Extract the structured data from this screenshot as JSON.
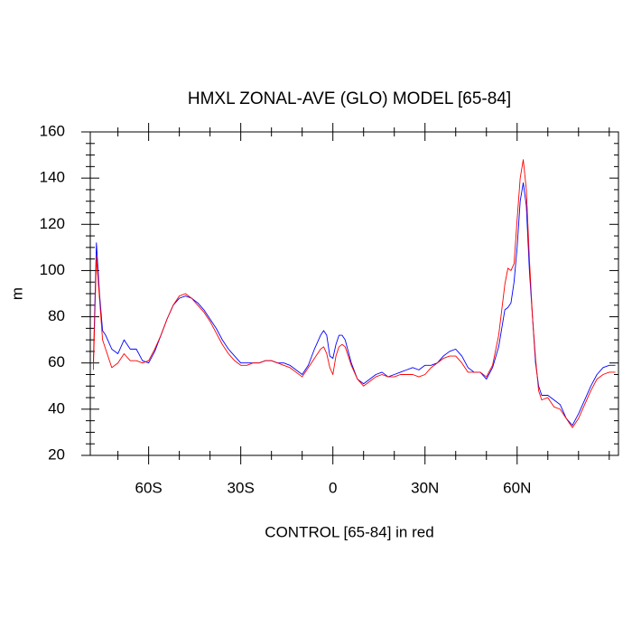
{
  "chart_data": {
    "type": "line",
    "title": "HMXL ZONAL-AVE (GLO) MODEL [65-84]",
    "xlabel": "CONTROL [65-84] in red",
    "ylabel": "m",
    "x": [
      -78,
      -77,
      -76,
      -75,
      -74,
      -72,
      -70,
      -68,
      -66,
      -64,
      -62,
      -60,
      -58,
      -56,
      -54,
      -52,
      -50,
      -48,
      -46,
      -44,
      -42,
      -40,
      -38,
      -36,
      -34,
      -32,
      -30,
      -28,
      -26,
      -24,
      -22,
      -20,
      -18,
      -16,
      -14,
      -12,
      -10,
      -8,
      -6,
      -4,
      -3,
      -2,
      -1,
      0,
      1,
      2,
      3,
      4,
      6,
      8,
      10,
      12,
      14,
      16,
      18,
      20,
      22,
      24,
      26,
      28,
      30,
      32,
      34,
      36,
      38,
      40,
      42,
      44,
      46,
      48,
      50,
      52,
      54,
      56,
      57,
      58,
      59,
      60,
      61,
      62,
      63,
      64,
      65,
      66,
      67,
      68,
      70,
      72,
      74,
      76,
      78,
      80,
      82,
      84,
      86,
      88,
      90,
      92
    ],
    "series": [
      {
        "color": "#0000ff",
        "values": [
          60,
          112,
          90,
          74,
          72,
          66,
          64,
          70,
          66,
          66,
          61,
          60,
          65,
          72,
          79,
          85,
          88,
          89,
          88,
          86,
          83,
          79,
          75,
          70,
          66,
          63,
          60,
          60,
          60,
          60,
          61,
          61,
          60,
          60,
          59,
          57,
          55,
          59,
          66,
          72,
          74,
          72,
          63,
          62,
          68,
          72,
          72,
          70,
          60,
          53,
          51,
          53,
          55,
          56,
          54,
          55,
          56,
          57,
          58,
          57,
          59,
          59,
          60,
          63,
          65,
          66,
          63,
          58,
          56,
          56,
          53,
          58,
          67,
          83,
          84,
          86,
          95,
          110,
          130,
          138,
          128,
          100,
          80,
          60,
          50,
          46,
          46,
          44,
          42,
          36,
          33,
          38,
          44,
          50,
          55,
          58,
          59,
          59
        ]
      },
      {
        "color": "#ff0000",
        "values": [
          57,
          106,
          88,
          70,
          66,
          58,
          60,
          64,
          61,
          61,
          60,
          61,
          66,
          72,
          79,
          85,
          89,
          90,
          88,
          85,
          82,
          78,
          73,
          68,
          64,
          61,
          59,
          59,
          60,
          60,
          61,
          61,
          60,
          59,
          58,
          56,
          54,
          58,
          62,
          66,
          67,
          64,
          58,
          55,
          63,
          67,
          68,
          67,
          59,
          53,
          50,
          52,
          54,
          55,
          54,
          54,
          55,
          55,
          55,
          54,
          55,
          58,
          60,
          62,
          63,
          63,
          60,
          56,
          56,
          56,
          54,
          59,
          72,
          94,
          101,
          100,
          103,
          122,
          140,
          148,
          135,
          105,
          80,
          62,
          48,
          44,
          45,
          41,
          40,
          36,
          32,
          36,
          42,
          48,
          53,
          55,
          56,
          56
        ]
      }
    ],
    "xlim": [
      -79,
      93
    ],
    "xticks": [
      {
        "value": -60,
        "label": "60S"
      },
      {
        "value": -30,
        "label": "30S"
      },
      0,
      {
        "value": 30,
        "label": "30N"
      },
      {
        "value": 60,
        "label": "60N"
      }
    ],
    "xminorticks": [
      -70,
      -50,
      -40,
      -20,
      -10,
      10,
      20,
      40,
      50,
      70,
      80,
      90
    ],
    "ylim": [
      20,
      160
    ],
    "yticks": [
      20,
      40,
      60,
      80,
      100,
      120,
      140,
      160
    ],
    "yminorticks": [
      25,
      30,
      35,
      45,
      50,
      55,
      65,
      70,
      75,
      85,
      90,
      95,
      105,
      110,
      115,
      125,
      130,
      135,
      145,
      150,
      155
    ],
    "grid": false
  }
}
